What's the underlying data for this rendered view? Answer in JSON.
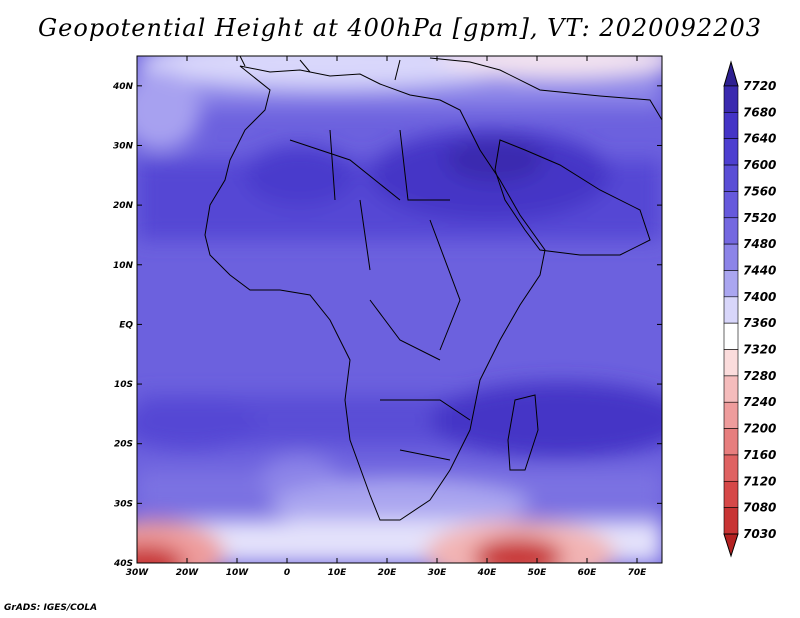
{
  "title": "Geopotential Height at 400hPa [gpm], VT: 2020092203",
  "credit": "GrADS: IGES/COLA",
  "map": {
    "lon_range": [
      -30,
      75
    ],
    "lat_range": [
      -40,
      45
    ],
    "lat_ticks": [
      {
        "value": 40,
        "label": "40N"
      },
      {
        "value": 30,
        "label": "30N"
      },
      {
        "value": 20,
        "label": "20N"
      },
      {
        "value": 10,
        "label": "10N"
      },
      {
        "value": 0,
        "label": "EQ"
      },
      {
        "value": -10,
        "label": "10S"
      },
      {
        "value": -20,
        "label": "20S"
      },
      {
        "value": -30,
        "label": "30S"
      },
      {
        "value": -40,
        "label": "40S"
      }
    ],
    "lon_ticks": [
      {
        "value": -30,
        "label": "30W"
      },
      {
        "value": -20,
        "label": "20W"
      },
      {
        "value": -10,
        "label": "10W"
      },
      {
        "value": 0,
        "label": "0"
      },
      {
        "value": 10,
        "label": "10E"
      },
      {
        "value": 20,
        "label": "20E"
      },
      {
        "value": 30,
        "label": "30E"
      },
      {
        "value": 40,
        "label": "40E"
      },
      {
        "value": 50,
        "label": "50E"
      },
      {
        "value": 60,
        "label": "60E"
      },
      {
        "value": 70,
        "label": "70E"
      }
    ]
  },
  "colorbar": {
    "labels": [
      "7720",
      "7680",
      "7640",
      "7600",
      "7560",
      "7520",
      "7480",
      "7440",
      "7400",
      "7360",
      "7320",
      "7280",
      "7240",
      "7200",
      "7160",
      "7120",
      "7080",
      "7030"
    ],
    "colors": [
      "#2e2091",
      "#3a2aaf",
      "#4434c6",
      "#4d3fd0",
      "#5a4ed6",
      "#6659dc",
      "#7468e0",
      "#8c84e8",
      "#aaa6f0",
      "#d8d6fa",
      "#ffffff",
      "#fbdcdc",
      "#f5bcbc",
      "#ee9c9c",
      "#e77e7e",
      "#df6262",
      "#d64848",
      "#c83434",
      "#b42222"
    ]
  }
}
